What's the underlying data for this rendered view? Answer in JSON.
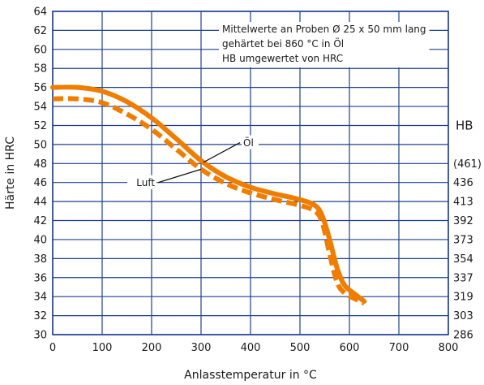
{
  "chart_data": {
    "type": "line",
    "xlabel": "Anlasstemperatur in °C",
    "ylabel": "Härte in HRC",
    "y2label": "HB",
    "xlim": [
      0,
      800
    ],
    "ylim": [
      30,
      64
    ],
    "xticks": [
      0,
      100,
      200,
      300,
      400,
      500,
      600,
      700,
      800
    ],
    "yticks": [
      30,
      32,
      34,
      36,
      38,
      40,
      42,
      44,
      46,
      48,
      50,
      52,
      54,
      56,
      58,
      60,
      62,
      64
    ],
    "y2ticks": [
      {
        "hrc": 30,
        "label": "286"
      },
      {
        "hrc": 32,
        "label": "303"
      },
      {
        "hrc": 34,
        "label": "319"
      },
      {
        "hrc": 36,
        "label": "337"
      },
      {
        "hrc": 38,
        "label": "354"
      },
      {
        "hrc": 40,
        "label": "373"
      },
      {
        "hrc": 42,
        "label": "392"
      },
      {
        "hrc": 44,
        "label": "413"
      },
      {
        "hrc": 46,
        "label": "436"
      },
      {
        "hrc": 48,
        "label": "(461)"
      }
    ],
    "grid": true,
    "series": [
      {
        "name": "Öl",
        "style": "solid",
        "color": "#f07d00",
        "x": [
          0,
          50,
          100,
          150,
          200,
          250,
          300,
          350,
          400,
          450,
          500,
          530,
          545,
          560,
          575,
          590,
          610,
          630
        ],
        "y": [
          56,
          56,
          55.6,
          54.5,
          52.8,
          50.6,
          48.3,
          46.6,
          45.5,
          44.8,
          44.2,
          43.6,
          42.5,
          40,
          37,
          35.2,
          34.3,
          33.5
        ]
      },
      {
        "name": "Luft",
        "style": "dashed",
        "color": "#f07d00",
        "x": [
          0,
          50,
          100,
          150,
          200,
          250,
          300,
          350,
          400,
          450,
          500,
          530,
          545,
          560,
          575,
          590,
          610,
          630
        ],
        "y": [
          54.8,
          54.8,
          54.4,
          53.2,
          51.6,
          49.5,
          47.4,
          45.9,
          44.9,
          44.2,
          43.6,
          43,
          41.8,
          38.5,
          35.5,
          34.4,
          33.8,
          33.3
        ]
      }
    ],
    "annotations": [
      {
        "text": "Öl",
        "series": "Öl",
        "at_x": 305,
        "label_x": 382,
        "label_y": 50.2
      },
      {
        "text": "Luft",
        "series": "Luft",
        "at_x": 300,
        "label_x": 210,
        "label_y": 46
      }
    ],
    "note_lines": [
      "Mittelwerte an Proben Ø 25 x 50 mm lang",
      "gehärtet bei 860 °C in Öl",
      "HB umgewertet von HRC"
    ]
  }
}
